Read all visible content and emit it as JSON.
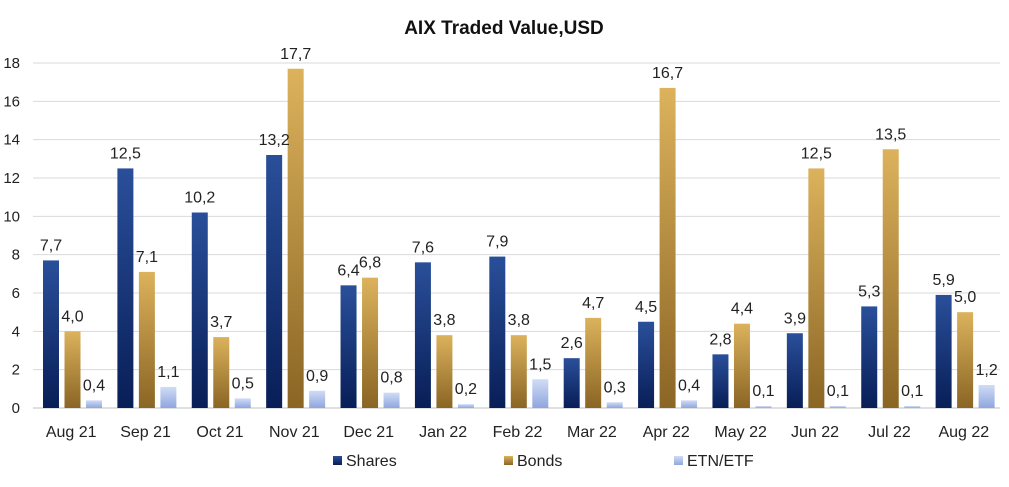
{
  "colors": {
    "shares_top": "#2a4f9a",
    "shares_bottom": "#081e57",
    "bonds_top": "#dcb25c",
    "bonds_bottom": "#8a6524",
    "etf_top": "#d0dcf6",
    "etf_bottom": "#8fa6de",
    "grid": "#d9d9d9",
    "text": "#222222"
  },
  "chart_data": {
    "type": "bar",
    "title": "AIX Traded Value,USD",
    "xlabel": "",
    "ylabel": "",
    "ylim": [
      0,
      18
    ],
    "yticks": [
      0,
      2,
      4,
      6,
      8,
      10,
      12,
      14,
      16,
      18
    ],
    "grid": true,
    "legend_position": "bottom",
    "categories": [
      "Aug 21",
      "Sep 21",
      "Oct 21",
      "Nov 21",
      "Dec 21",
      "Jan 22",
      "Feb 22",
      "Mar 22",
      "Apr 22",
      "May 22",
      "Jun 22",
      "Jul 22",
      "Aug 22"
    ],
    "series": [
      {
        "name": "Shares",
        "values": [
          7.7,
          12.5,
          10.2,
          13.2,
          6.4,
          7.6,
          7.9,
          2.6,
          4.5,
          2.8,
          3.9,
          5.3,
          5.9
        ],
        "labels": [
          "7,7",
          "12,5",
          "10,2",
          "13,2",
          "6,4",
          "7,6",
          "7,9",
          "2,6",
          "4,5",
          "2,8",
          "3,9",
          "5,3",
          "5,9"
        ]
      },
      {
        "name": "Bonds",
        "values": [
          4.0,
          7.1,
          3.7,
          17.7,
          6.8,
          3.8,
          3.8,
          4.7,
          16.7,
          4.4,
          12.5,
          13.5,
          5.0
        ],
        "labels": [
          "4,0",
          "7,1",
          "3,7",
          "17,7",
          "6,8",
          "3,8",
          "3,8",
          "4,7",
          "16,7",
          "4,4",
          "12,5",
          "13,5",
          "5,0"
        ]
      },
      {
        "name": "ETN/ETF",
        "values": [
          0.4,
          1.1,
          0.5,
          0.9,
          0.8,
          0.2,
          1.5,
          0.3,
          0.4,
          0.1,
          0.1,
          0.1,
          1.2
        ],
        "labels": [
          "0,4",
          "1,1",
          "0,5",
          "0,9",
          "0,8",
          "0,2",
          "1,5",
          "0,3",
          "0,4",
          "0,1",
          "0,1",
          "0,1",
          "1,2"
        ]
      }
    ]
  }
}
